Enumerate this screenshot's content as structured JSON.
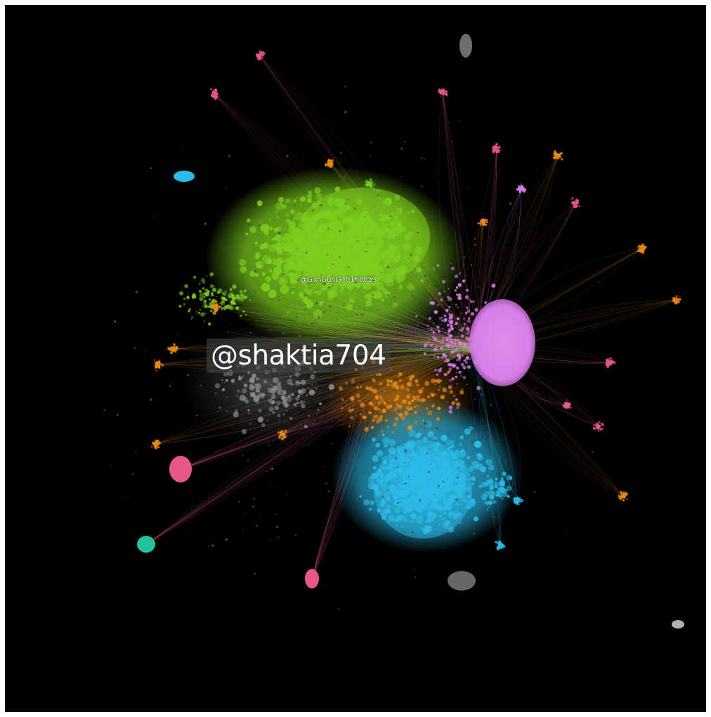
{
  "labels": {
    "featured_node": "@shaktia704",
    "hub_node": "@GunGunG48168853"
  },
  "colors": {
    "background": "#000000",
    "frame": "#ffffff",
    "communities": {
      "green": "#7ccd1e",
      "violet": "#d77ee6",
      "cyan": "#2bbbe8",
      "orange": "#e88a17",
      "pink": "#e8578a",
      "teal": "#22c49a",
      "gray": "#8a8a8a"
    }
  }
}
